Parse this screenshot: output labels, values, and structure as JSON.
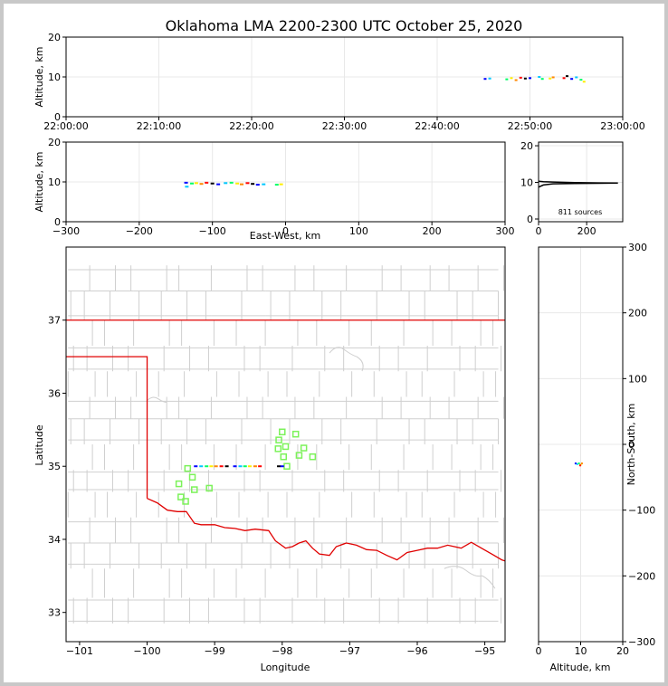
{
  "chart_data": {
    "type": "scatter",
    "title": "Oklahoma LMA 2200-2300 UTC October 25, 2020",
    "source_count_label": "811 sources",
    "time_altitude": {
      "ylabel": "Altitude, km",
      "ylim": [
        0,
        20
      ],
      "yticks": [
        "0",
        "10",
        "20"
      ],
      "xlim_seconds": [
        79200,
        82800
      ],
      "xticks": [
        "22:00:00",
        "22:10:00",
        "22:20:00",
        "22:30:00",
        "22:40:00",
        "22:50:00",
        "23:00:00"
      ],
      "points": [
        {
          "t": "22:45:10",
          "alt": 9.5
        },
        {
          "t": "22:45:40",
          "alt": 9.6
        },
        {
          "t": "22:47:30",
          "alt": 9.4
        },
        {
          "t": "22:48:00",
          "alt": 9.7
        },
        {
          "t": "22:48:30",
          "alt": 9.2
        },
        {
          "t": "22:49:00",
          "alt": 9.8
        },
        {
          "t": "22:49:30",
          "alt": 9.6
        },
        {
          "t": "22:50:00",
          "alt": 9.7
        },
        {
          "t": "22:51:00",
          "alt": 10.0
        },
        {
          "t": "22:51:20",
          "alt": 9.5
        },
        {
          "t": "22:52:10",
          "alt": 9.6
        },
        {
          "t": "22:52:30",
          "alt": 9.9
        },
        {
          "t": "22:53:40",
          "alt": 9.7
        },
        {
          "t": "22:54:00",
          "alt": 10.2
        },
        {
          "t": "22:54:30",
          "alt": 9.5
        },
        {
          "t": "22:55:00",
          "alt": 9.9
        },
        {
          "t": "22:55:30",
          "alt": 9.3
        },
        {
          "t": "22:55:50",
          "alt": 8.8
        }
      ]
    },
    "ew_altitude": {
      "xlabel": "East-West, km",
      "ylabel": "Altitude, km",
      "xlim": [
        -300,
        300
      ],
      "ylim": [
        0,
        20
      ],
      "xticks": [
        "−300",
        "−200",
        "−100",
        "0",
        "100",
        "200",
        "300"
      ],
      "yticks": [
        "0",
        "10",
        "20"
      ],
      "points": [
        {
          "x": -136,
          "alt": 9.8
        },
        {
          "x": -135,
          "alt": 8.8
        },
        {
          "x": -128,
          "alt": 9.6
        },
        {
          "x": -122,
          "alt": 9.7
        },
        {
          "x": -115,
          "alt": 9.5
        },
        {
          "x": -108,
          "alt": 9.8
        },
        {
          "x": -100,
          "alt": 9.6
        },
        {
          "x": -92,
          "alt": 9.4
        },
        {
          "x": -82,
          "alt": 9.7
        },
        {
          "x": -74,
          "alt": 9.8
        },
        {
          "x": -66,
          "alt": 9.6
        },
        {
          "x": -60,
          "alt": 9.4
        },
        {
          "x": -52,
          "alt": 9.7
        },
        {
          "x": -45,
          "alt": 9.5
        },
        {
          "x": -38,
          "alt": 9.3
        },
        {
          "x": -30,
          "alt": 9.4
        },
        {
          "x": -12,
          "alt": 9.3
        },
        {
          "x": -6,
          "alt": 9.4
        }
      ]
    },
    "altitude_histogram": {
      "xlim": [
        0,
        350
      ],
      "ylim": [
        0,
        21
      ],
      "xticks": [
        "0",
        "200"
      ],
      "yticks": [
        "0",
        "10",
        "20"
      ],
      "profile": [
        [
          0,
          8.7
        ],
        [
          20,
          9.3
        ],
        [
          60,
          9.6
        ],
        [
          150,
          9.7
        ],
        [
          250,
          9.75
        ],
        [
          330,
          9.8
        ],
        [
          250,
          9.85
        ],
        [
          150,
          9.95
        ],
        [
          60,
          10.1
        ],
        [
          20,
          10.2
        ],
        [
          0,
          10.3
        ]
      ]
    },
    "plan_view": {
      "xlabel": "Longitude",
      "ylabel": "Latitude",
      "xlim": [
        -101.2,
        -94.7
      ],
      "ylim": [
        32.6,
        38.0
      ],
      "xticks": [
        "−101",
        "−100",
        "−99",
        "−98",
        "−97",
        "−96",
        "−95"
      ],
      "yticks": [
        "33",
        "34",
        "35",
        "36",
        "37"
      ],
      "sources": [
        {
          "lon": -99.28,
          "lat": 35.0
        },
        {
          "lon": -99.2,
          "lat": 35.0
        },
        {
          "lon": -99.12,
          "lat": 35.0
        },
        {
          "lon": -99.05,
          "lat": 35.0
        },
        {
          "lon": -98.98,
          "lat": 35.0
        },
        {
          "lon": -98.9,
          "lat": 35.0
        },
        {
          "lon": -98.82,
          "lat": 35.0
        },
        {
          "lon": -98.7,
          "lat": 35.0
        },
        {
          "lon": -98.62,
          "lat": 35.0
        },
        {
          "lon": -98.55,
          "lat": 35.0
        },
        {
          "lon": -98.48,
          "lat": 35.0
        },
        {
          "lon": -98.4,
          "lat": 35.0
        },
        {
          "lon": -98.33,
          "lat": 35.0
        },
        {
          "lon": -98.05,
          "lat": 35.0
        },
        {
          "lon": -98.0,
          "lat": 35.0
        }
      ],
      "stations": [
        {
          "lon": -98.0,
          "lat": 35.47
        },
        {
          "lon": -97.8,
          "lat": 35.44
        },
        {
          "lon": -98.05,
          "lat": 35.36
        },
        {
          "lon": -97.95,
          "lat": 35.27
        },
        {
          "lon": -97.68,
          "lat": 35.25
        },
        {
          "lon": -98.06,
          "lat": 35.24
        },
        {
          "lon": -97.75,
          "lat": 35.15
        },
        {
          "lon": -97.55,
          "lat": 35.13
        },
        {
          "lon": -97.98,
          "lat": 35.13
        },
        {
          "lon": -97.93,
          "lat": 35.0
        },
        {
          "lon": -99.4,
          "lat": 34.97
        },
        {
          "lon": -99.33,
          "lat": 34.85
        },
        {
          "lon": -99.53,
          "lat": 34.76
        },
        {
          "lon": -99.3,
          "lat": 34.68
        },
        {
          "lon": -99.08,
          "lat": 34.7
        },
        {
          "lon": -99.5,
          "lat": 34.58
        },
        {
          "lon": -99.43,
          "lat": 34.52
        }
      ],
      "boundary_color": "#e00000",
      "county_color": "#cfcfcf",
      "station_color": "#7cf25a"
    },
    "ns_altitude": {
      "xlabel": "Altitude, km",
      "ylabel": "North-South, km",
      "xlim": [
        0,
        20
      ],
      "ylim": [
        -300,
        300
      ],
      "xticks": [
        "0",
        "10",
        "20"
      ],
      "yticks": [
        "−300",
        "−200",
        "−100",
        "0",
        "100",
        "200",
        "300"
      ],
      "points": [
        {
          "alt": 8.8,
          "y": -29
        },
        {
          "alt": 9.2,
          "y": -30
        },
        {
          "alt": 9.6,
          "y": -29
        },
        {
          "alt": 10.0,
          "y": -31
        },
        {
          "alt": 10.3,
          "y": -29
        },
        {
          "alt": 9.9,
          "y": -32
        }
      ]
    },
    "source_palette": [
      "#0000ff",
      "#00c8ff",
      "#00ff66",
      "#ffee00",
      "#ff8800",
      "#ff0000",
      "#000000"
    ]
  }
}
